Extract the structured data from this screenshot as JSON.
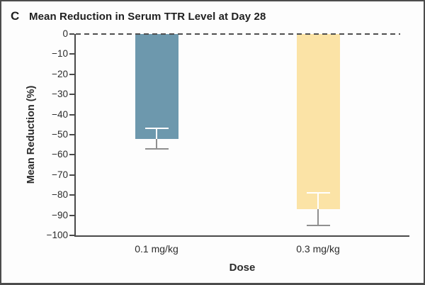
{
  "panel": {
    "letter": "C"
  },
  "chart_data": {
    "type": "bar",
    "title": "Mean Reduction in Serum TTR Level at Day 28",
    "xlabel": "Dose",
    "ylabel": "Mean Reduction (%)",
    "ylim": [
      0,
      -100
    ],
    "grid": false,
    "zero_baseline_style": "dashed",
    "categories": [
      "0.1 mg/kg",
      "0.3 mg/kg"
    ],
    "values": [
      -52,
      -87
    ],
    "error_bars": [
      {
        "upper": -47,
        "lower": -57
      },
      {
        "upper": -79,
        "lower": -95
      }
    ],
    "bar_colors": [
      "#6d98ad",
      "#fbe3a6"
    ],
    "error_color_inside_bar": "#ffffff",
    "error_color_outside_bar": "#8f8f8f",
    "axis_color": "#4a4a4a",
    "yticks": [
      {
        "label": "0",
        "value": 0
      },
      {
        "label": "−10",
        "value": -10
      },
      {
        "label": "−20",
        "value": -20
      },
      {
        "label": "−30",
        "value": -30
      },
      {
        "label": "−40",
        "value": -40
      },
      {
        "label": "−50",
        "value": -50
      },
      {
        "label": "−60",
        "value": -60
      },
      {
        "label": "−70",
        "value": -70
      },
      {
        "label": "−80",
        "value": -80
      },
      {
        "label": "−90",
        "value": -90
      },
      {
        "label": "−100",
        "value": -100
      }
    ]
  }
}
